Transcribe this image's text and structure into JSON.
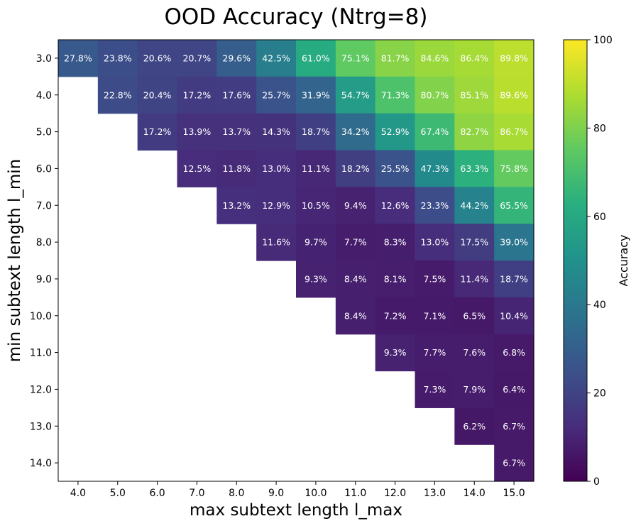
{
  "chart_data": {
    "type": "heatmap",
    "title": "OOD Accuracy (Ntrg=8)",
    "xlabel": "max subtext length l_max",
    "ylabel": "min subtext length l_min",
    "x_categories": [
      "4.0",
      "5.0",
      "6.0",
      "7.0",
      "8.0",
      "9.0",
      "10.0",
      "11.0",
      "12.0",
      "13.0",
      "14.0",
      "15.0"
    ],
    "y_categories": [
      "3.0",
      "4.0",
      "5.0",
      "6.0",
      "7.0",
      "8.0",
      "9.0",
      "10.0",
      "11.0",
      "12.0",
      "13.0",
      "14.0"
    ],
    "values": [
      [
        27.8,
        23.8,
        20.6,
        20.7,
        29.6,
        42.5,
        61.0,
        75.1,
        81.7,
        84.6,
        86.4,
        89.8
      ],
      [
        null,
        22.8,
        20.4,
        17.2,
        17.6,
        25.7,
        31.9,
        54.7,
        71.3,
        80.7,
        85.1,
        89.6
      ],
      [
        null,
        null,
        17.2,
        13.9,
        13.7,
        14.3,
        18.7,
        34.2,
        52.9,
        67.4,
        82.7,
        86.7
      ],
      [
        null,
        null,
        null,
        12.5,
        11.8,
        13.0,
        11.1,
        18.2,
        25.5,
        47.3,
        63.3,
        75.8
      ],
      [
        null,
        null,
        null,
        null,
        13.2,
        12.9,
        10.5,
        9.4,
        12.6,
        23.3,
        44.2,
        65.5
      ],
      [
        null,
        null,
        null,
        null,
        null,
        11.6,
        9.7,
        7.7,
        8.3,
        13.0,
        17.5,
        39.0
      ],
      [
        null,
        null,
        null,
        null,
        null,
        null,
        9.3,
        8.4,
        8.1,
        7.5,
        11.4,
        18.7
      ],
      [
        null,
        null,
        null,
        null,
        null,
        null,
        null,
        8.4,
        7.2,
        7.1,
        6.5,
        10.4
      ],
      [
        null,
        null,
        null,
        null,
        null,
        null,
        null,
        null,
        9.3,
        7.7,
        7.6,
        6.8
      ],
      [
        null,
        null,
        null,
        null,
        null,
        null,
        null,
        null,
        null,
        7.3,
        7.9,
        6.4
      ],
      [
        null,
        null,
        null,
        null,
        null,
        null,
        null,
        null,
        null,
        null,
        6.2,
        6.7
      ],
      [
        null,
        null,
        null,
        null,
        null,
        null,
        null,
        null,
        null,
        null,
        null,
        6.7
      ]
    ],
    "value_format": "percent_1dp",
    "colormap": "viridis",
    "vmin": 0,
    "vmax": 100,
    "colorbar": {
      "label": "Accuracy",
      "ticks": [
        "0",
        "20",
        "40",
        "60",
        "80",
        "100"
      ]
    }
  }
}
